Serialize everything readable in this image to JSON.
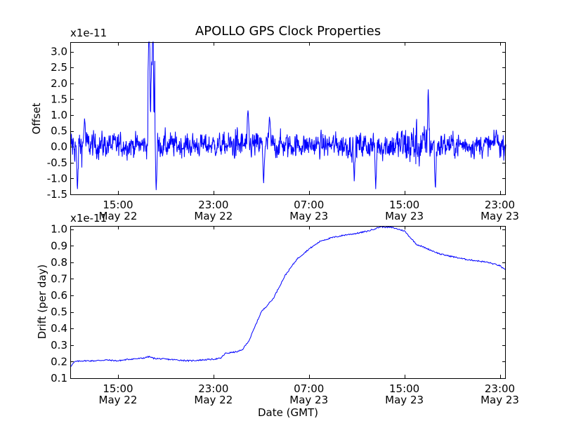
{
  "chart_data": [
    {
      "type": "line",
      "title": "APOLLO GPS Clock Properties",
      "ylabel": "Offset",
      "y_multiplier": "x1e-11",
      "ylim": [
        -1.5,
        3.3
      ],
      "yticks": [
        -1.5,
        -1.0,
        -0.5,
        0.0,
        0.5,
        1.0,
        1.5,
        2.0,
        2.5,
        3.0
      ],
      "ytick_labels": [
        "-1.5",
        "-1.0",
        "-0.5",
        "0.0",
        "0.5",
        "1.0",
        "1.5",
        "2.0",
        "2.5",
        "3.0"
      ],
      "x_hours_range": [
        11.0,
        47.5
      ],
      "xticks": [
        {
          "hour": 15,
          "time": "15:00",
          "date": "May 22"
        },
        {
          "hour": 23,
          "time": "23:00",
          "date": "May 22"
        },
        {
          "hour": 31,
          "time": "07:00",
          "date": "May 23"
        },
        {
          "hour": 39,
          "time": "15:00",
          "date": "May 23"
        },
        {
          "hour": 47,
          "time": "23:00",
          "date": "May 23"
        }
      ],
      "series": [
        {
          "name": "Offset",
          "color": "#0000ff",
          "noise_envelope_hours": [
            11,
            13,
            17.5,
            18,
            18.5,
            19,
            20,
            24,
            25,
            26,
            28,
            31,
            35,
            37,
            38.5,
            40,
            41,
            42,
            44,
            47.5
          ],
          "noise_envelope_amp": [
            0.5,
            0.35,
            0.3,
            0.5,
            0.3,
            0.35,
            0.3,
            0.3,
            0.45,
            0.35,
            0.35,
            0.3,
            0.35,
            0.35,
            0.45,
            0.65,
            0.45,
            0.35,
            0.3,
            0.3
          ],
          "features": [
            {
              "hour": 11.6,
              "value": -1.45
            },
            {
              "hour": 12.2,
              "value": 0.95
            },
            {
              "hour": 17.6,
              "value": 3.25
            },
            {
              "hour": 17.9,
              "value": 2.6
            },
            {
              "hour": 18.1,
              "value": 1.1
            },
            {
              "hour": 18.2,
              "value": -1.4
            },
            {
              "hour": 25.9,
              "value": 1.2
            },
            {
              "hour": 27.2,
              "value": -1.2
            },
            {
              "hour": 27.7,
              "value": 1.0
            },
            {
              "hour": 34.8,
              "value": -1.1
            },
            {
              "hour": 36.6,
              "value": -1.35
            },
            {
              "hour": 41.0,
              "value": 1.85
            },
            {
              "hour": 41.6,
              "value": -1.4
            },
            {
              "hour": 46.7,
              "value": 0.55
            }
          ]
        }
      ]
    },
    {
      "type": "line",
      "ylabel": "Drift (per day)",
      "xlabel": "Date (GMT)",
      "y_multiplier": "x1e-11",
      "ylim": [
        0.1,
        1.02
      ],
      "yticks": [
        0.1,
        0.2,
        0.3,
        0.4,
        0.5,
        0.6,
        0.7,
        0.8,
        0.9,
        1.0
      ],
      "ytick_labels": [
        "0.1",
        "0.2",
        "0.3",
        "0.4",
        "0.5",
        "0.6",
        "0.7",
        "0.8",
        "0.9",
        "1.0"
      ],
      "x_hours_range": [
        11.0,
        47.5
      ],
      "xticks": [
        {
          "hour": 15,
          "time": "15:00",
          "date": "May 22"
        },
        {
          "hour": 23,
          "time": "23:00",
          "date": "May 22"
        },
        {
          "hour": 31,
          "time": "07:00",
          "date": "May 23"
        },
        {
          "hour": 39,
          "time": "15:00",
          "date": "May 23"
        },
        {
          "hour": 47,
          "time": "23:00",
          "date": "May 23"
        }
      ],
      "series": [
        {
          "name": "Drift",
          "color": "#0000ff",
          "x_hours": [
            11.0,
            11.4,
            12.0,
            13.0,
            14.0,
            15.0,
            16.0,
            17.0,
            17.6,
            18.0,
            19.0,
            20.0,
            21.0,
            22.0,
            23.0,
            23.6,
            24.0,
            25.0,
            25.4,
            26.0,
            27.0,
            28.0,
            29.0,
            30.0,
            31.0,
            32.0,
            33.0,
            34.0,
            35.0,
            36.0,
            37.0,
            38.0,
            39.0,
            40.0,
            41.0,
            42.0,
            43.0,
            44.0,
            45.0,
            46.0,
            47.0,
            47.5
          ],
          "values": [
            0.17,
            0.2,
            0.205,
            0.205,
            0.21,
            0.205,
            0.215,
            0.22,
            0.23,
            0.22,
            0.215,
            0.21,
            0.205,
            0.21,
            0.215,
            0.22,
            0.25,
            0.26,
            0.27,
            0.33,
            0.5,
            0.58,
            0.72,
            0.82,
            0.88,
            0.93,
            0.95,
            0.965,
            0.975,
            0.99,
            1.015,
            1.01,
            0.99,
            0.91,
            0.88,
            0.85,
            0.835,
            0.82,
            0.81,
            0.8,
            0.78,
            0.75
          ]
        }
      ]
    }
  ]
}
